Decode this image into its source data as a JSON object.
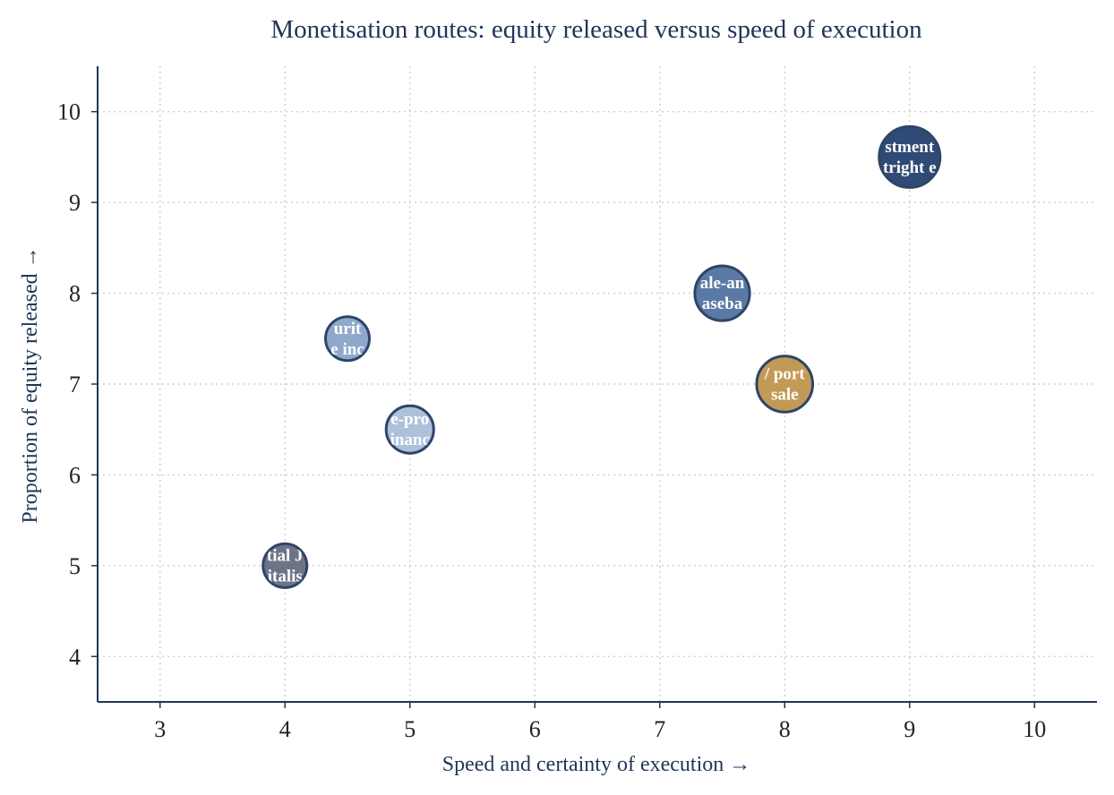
{
  "chart_data": {
    "type": "scatter",
    "title": "Monetisation routes: equity released versus speed of execution",
    "xlabel": "Speed and certainty of execution  →",
    "ylabel": "Proportion of equity released  →",
    "xlim": [
      2.5,
      10.5
    ],
    "ylim": [
      3.5,
      10.5
    ],
    "xticks": [
      3,
      4,
      5,
      6,
      7,
      8,
      9,
      10
    ],
    "yticks": [
      4,
      5,
      6,
      7,
      8,
      9,
      10
    ],
    "grid": true,
    "colors": {
      "axis": "#1f3558",
      "bubble_edge": "#2e4569"
    },
    "points": [
      {
        "x": 9.0,
        "y": 9.5,
        "size": 1.0,
        "label_lines": [
          "stment",
          "tright e"
        ],
        "color": "#2f4a75"
      },
      {
        "x": 7.5,
        "y": 8.0,
        "size": 0.9,
        "label_lines": [
          "ale-an",
          "aseba"
        ],
        "color": "#5a7aa5"
      },
      {
        "x": 8.0,
        "y": 7.0,
        "size": 0.92,
        "label_lines": "/ port|sale",
        "color": "#c39a55"
      },
      {
        "x": 4.5,
        "y": 7.5,
        "size": 0.72,
        "label_lines": [
          "urit",
          "e inc"
        ],
        "color": "#8ea9cc"
      },
      {
        "x": 5.0,
        "y": 6.5,
        "size": 0.78,
        "label_lines": [
          "e-pro",
          "inanc"
        ],
        "color": "#adc1da"
      },
      {
        "x": 4.0,
        "y": 5.0,
        "size": 0.72,
        "label_lines": [
          "tial J",
          "italis"
        ],
        "color": "#6e7488"
      }
    ]
  }
}
